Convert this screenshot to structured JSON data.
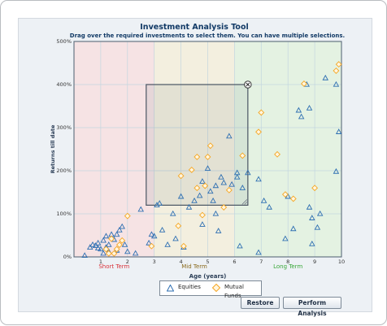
{
  "header": {
    "title": "Investment Analysis Tool",
    "instructions": "Drag over the required investments to select them. You can have multiple selections."
  },
  "legend": {
    "equities": "Equities",
    "mutual_funds": "Mutual Funds"
  },
  "buttons": {
    "restore": "Restore",
    "perform": "Perform Analysis"
  },
  "colors": {
    "equities": "#2e6fb2",
    "mutual_funds": "#f5a623",
    "short_term": "#d9333a",
    "mid_term": "#8a6a1e",
    "long_term": "#3aa83a",
    "title": "#123a66"
  },
  "chart_data": {
    "type": "scatter",
    "title": "Investment Analysis Tool",
    "xlabel": "Age (years)",
    "ylabel": "Returns till date",
    "xlim": [
      0,
      10
    ],
    "ylim": [
      0,
      500
    ],
    "x_ticks": [
      "1",
      "2",
      "3",
      "4",
      "5",
      "6",
      "7",
      "8",
      "9",
      "10"
    ],
    "y_ticks": [
      "0%",
      "100%",
      "200%",
      "300%",
      "400%",
      "500%"
    ],
    "grid": true,
    "legend_position": "bottom-center",
    "regions": [
      {
        "label": "Short Term",
        "from": 0,
        "to": 3
      },
      {
        "label": "Mid Term",
        "from": 3,
        "to": 6
      },
      {
        "label": "Long Term",
        "from": 6,
        "to": 10
      }
    ],
    "selection": {
      "x": [
        2.7,
        6.5
      ],
      "y": [
        120,
        400
      ]
    },
    "series": [
      {
        "name": "Equities",
        "marker": "triangle",
        "points": [
          [
            0.4,
            3
          ],
          [
            0.6,
            22
          ],
          [
            0.7,
            28
          ],
          [
            0.8,
            26
          ],
          [
            0.9,
            20
          ],
          [
            0.9,
            32
          ],
          [
            1.0,
            18
          ],
          [
            1.1,
            38
          ],
          [
            1.1,
            8
          ],
          [
            1.2,
            48
          ],
          [
            1.2,
            22
          ],
          [
            1.3,
            12
          ],
          [
            1.3,
            28
          ],
          [
            1.4,
            52
          ],
          [
            1.5,
            40
          ],
          [
            1.6,
            15
          ],
          [
            1.6,
            52
          ],
          [
            1.7,
            62
          ],
          [
            1.8,
            70
          ],
          [
            1.9,
            28
          ],
          [
            2.0,
            12
          ],
          [
            2.3,
            8
          ],
          [
            2.5,
            110
          ],
          [
            2.8,
            32
          ],
          [
            2.9,
            52
          ],
          [
            3.0,
            48
          ],
          [
            3.1,
            120
          ],
          [
            3.2,
            124
          ],
          [
            3.3,
            62
          ],
          [
            3.5,
            28
          ],
          [
            3.7,
            100
          ],
          [
            3.8,
            42
          ],
          [
            4.0,
            140
          ],
          [
            4.1,
            22
          ],
          [
            4.3,
            115
          ],
          [
            4.5,
            130
          ],
          [
            4.7,
            142
          ],
          [
            4.8,
            175
          ],
          [
            4.8,
            75
          ],
          [
            5.0,
            205
          ],
          [
            5.1,
            152
          ],
          [
            5.2,
            130
          ],
          [
            5.3,
            165
          ],
          [
            5.3,
            100
          ],
          [
            5.4,
            60
          ],
          [
            5.5,
            185
          ],
          [
            5.6,
            172
          ],
          [
            5.8,
            280
          ],
          [
            5.9,
            168
          ],
          [
            6.1,
            185
          ],
          [
            6.1,
            195
          ],
          [
            6.2,
            25
          ],
          [
            6.3,
            160
          ],
          [
            6.5,
            195
          ],
          [
            6.9,
            10
          ],
          [
            6.9,
            180
          ],
          [
            7.1,
            130
          ],
          [
            7.3,
            115
          ],
          [
            7.9,
            42
          ],
          [
            8.0,
            140
          ],
          [
            8.2,
            65
          ],
          [
            8.4,
            340
          ],
          [
            8.5,
            325
          ],
          [
            8.7,
            400
          ],
          [
            8.8,
            345
          ],
          [
            8.8,
            115
          ],
          [
            8.9,
            90
          ],
          [
            8.9,
            30
          ],
          [
            9.1,
            68
          ],
          [
            9.2,
            100
          ],
          [
            9.4,
            415
          ],
          [
            9.8,
            400
          ],
          [
            9.8,
            198
          ],
          [
            9.9,
            290
          ]
        ]
      },
      {
        "name": "Mutual Funds",
        "marker": "diamond",
        "points": [
          [
            1.2,
            18
          ],
          [
            1.3,
            8
          ],
          [
            1.4,
            42
          ],
          [
            1.5,
            8
          ],
          [
            1.6,
            18
          ],
          [
            1.7,
            28
          ],
          [
            1.8,
            38
          ],
          [
            2.0,
            95
          ],
          [
            2.9,
            25
          ],
          [
            3.9,
            72
          ],
          [
            4.0,
            188
          ],
          [
            4.1,
            25
          ],
          [
            4.4,
            202
          ],
          [
            4.6,
            232
          ],
          [
            4.6,
            160
          ],
          [
            4.8,
            97
          ],
          [
            4.9,
            165
          ],
          [
            5.0,
            232
          ],
          [
            5.1,
            258
          ],
          [
            5.6,
            115
          ],
          [
            5.8,
            155
          ],
          [
            6.3,
            235
          ],
          [
            6.9,
            290
          ],
          [
            7.0,
            335
          ],
          [
            7.6,
            238
          ],
          [
            7.9,
            145
          ],
          [
            8.2,
            135
          ],
          [
            8.6,
            402
          ],
          [
            9.0,
            160
          ],
          [
            9.8,
            432
          ],
          [
            9.9,
            447
          ]
        ]
      }
    ]
  }
}
